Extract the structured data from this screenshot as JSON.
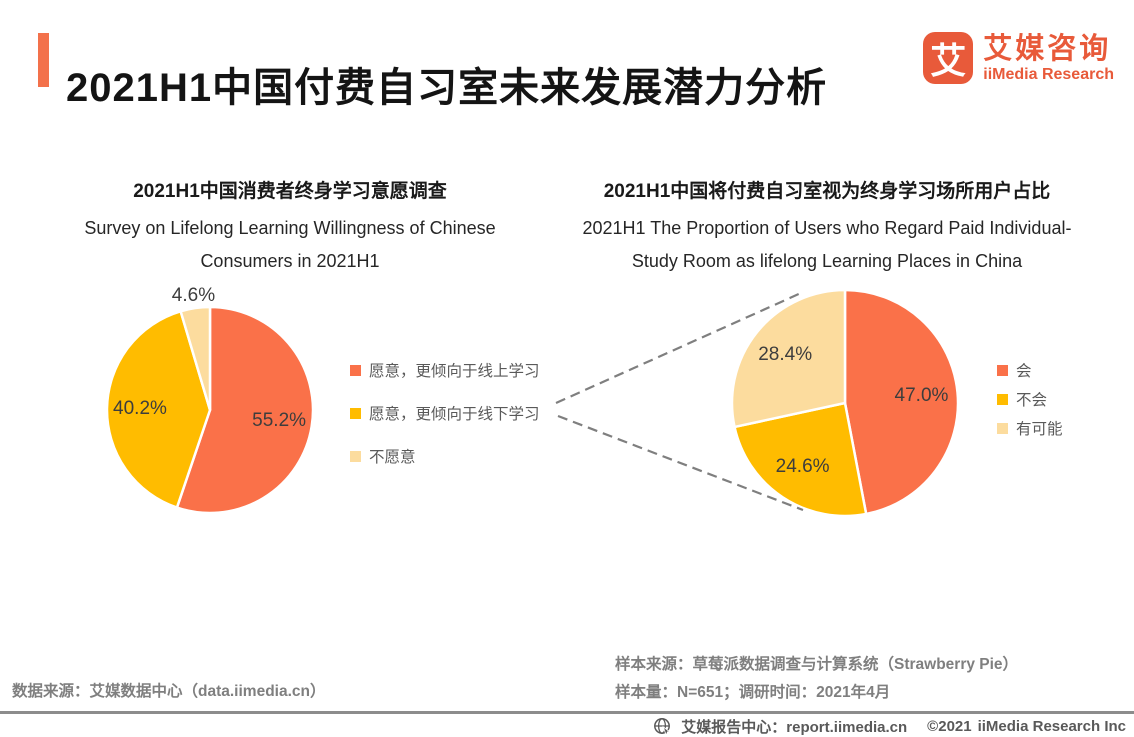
{
  "header": {
    "title": "2021H1中国付费自习室未来发展潜力分析",
    "logo": {
      "mark": "艾",
      "name_cn": "艾媒咨询",
      "name_en": "iiMedia Research"
    }
  },
  "colors": {
    "brand_orange": "#E85A3A",
    "accent_bar": "#F3714B",
    "pie_orange": "#FA7149",
    "pie_yellow": "#FFBC00",
    "pie_cream": "#FCDC9E",
    "connector_gray": "#7F7F7F"
  },
  "chart_data": [
    {
      "type": "pie",
      "title_cn": "2021H1中国消费者终身学习意愿调查",
      "title_en_lines": [
        "Survey on Lifelong Learning Willingness of Chinese",
        "Consumers in 2021H1"
      ],
      "legend_position": "right",
      "slices": [
        {
          "label": "愿意，更倾向于线上学习",
          "value": 55.2,
          "display": "55.2%",
          "color": "#FA7149",
          "label_outside": false
        },
        {
          "label": "愿意，更倾向于线下学习",
          "value": 40.2,
          "display": "40.2%",
          "color": "#FFBC00",
          "label_outside": false
        },
        {
          "label": "不愿意",
          "value": 4.6,
          "display": "4.6%",
          "color": "#FCDC9E",
          "label_outside": true
        }
      ]
    },
    {
      "type": "pie",
      "title_cn": "2021H1中国将付费自习室视为终身学习场所用户占比",
      "title_en_lines": [
        "2021H1 The Proportion of Users who Regard Paid Individual-",
        "Study Room as lifelong Learning Places in China"
      ],
      "legend_position": "right",
      "slices": [
        {
          "label": "会",
          "value": 47.0,
          "display": "47.0%",
          "color": "#FA7149",
          "label_outside": false
        },
        {
          "label": "不会",
          "value": 24.6,
          "display": "24.6%",
          "color": "#FFBC00",
          "label_outside": false
        },
        {
          "label": "有可能",
          "value": 28.4,
          "display": "28.4%",
          "color": "#FCDC9E",
          "label_outside": false
        }
      ]
    }
  ],
  "footnotes": {
    "left_source": "数据来源：艾媒数据中心（data.iimedia.cn）",
    "right_source_line1": "样本来源：草莓派数据调查与计算系统（Strawberry Pie）",
    "right_source_line2": "样本量：N=651；调研时间：2021年4月"
  },
  "footer": {
    "report_center": "艾媒报告中心：report.iimedia.cn",
    "copyright": "©2021",
    "company": "iiMedia Research  Inc"
  }
}
